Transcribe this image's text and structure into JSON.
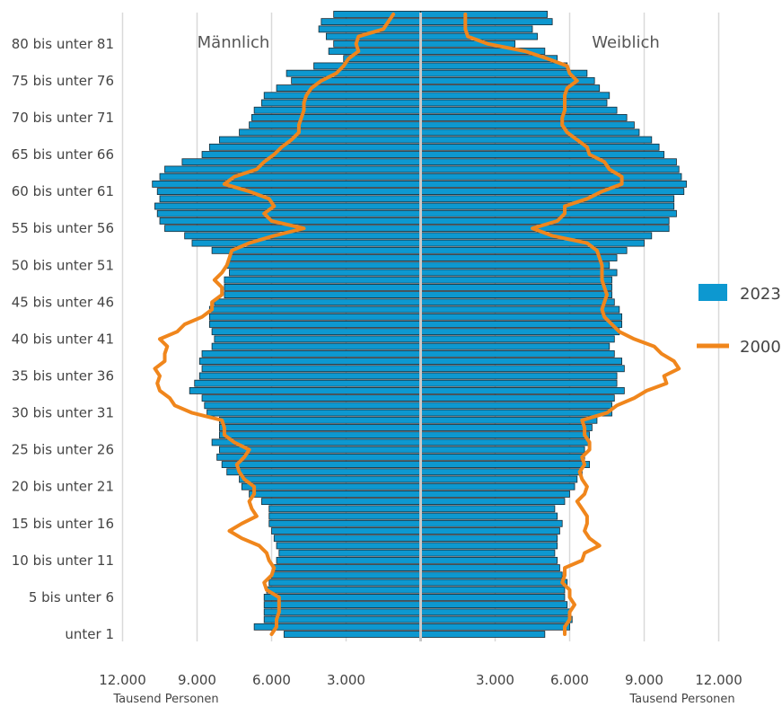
{
  "chart_data": {
    "type": "bar",
    "subtype": "population-pyramid",
    "side_labels": {
      "left": "Männlich",
      "right": "Weiblich"
    },
    "age_tick_labels": [
      "80 bis unter 81",
      "75 bis unter 76",
      "70 bis unter 71",
      "65 bis unter 66",
      "60 bis unter 61",
      "55 bis unter 56",
      "50 bis unter 51",
      "45 bis unter 46",
      "40 bis unter 41",
      "35 bis unter 36",
      "30 bis unter 31",
      "25 bis unter 26",
      "20 bis unter 21",
      "15 bis unter 16",
      "10 bis unter 11",
      "5 bis unter 6",
      "unter 1"
    ],
    "x_tick_labels_left": [
      "12.000",
      "9.000",
      "6.000",
      "3.000"
    ],
    "x_tick_labels_right": [
      "3.000",
      "6.000",
      "9.000",
      "12.000"
    ],
    "xlabel_left": "Tausend Personen",
    "xlabel_right": "Tausend Personen",
    "xlim": [
      0,
      12000
    ],
    "ages": [
      0,
      1,
      2,
      3,
      4,
      5,
      6,
      7,
      8,
      9,
      10,
      11,
      12,
      13,
      14,
      15,
      16,
      17,
      18,
      19,
      20,
      21,
      22,
      23,
      24,
      25,
      26,
      27,
      28,
      29,
      30,
      31,
      32,
      33,
      34,
      35,
      36,
      37,
      38,
      39,
      40,
      41,
      42,
      43,
      44,
      45,
      46,
      47,
      48,
      49,
      50,
      51,
      52,
      53,
      54,
      55,
      56,
      57,
      58,
      59,
      60,
      61,
      62,
      63,
      64,
      65,
      66,
      67,
      68,
      69,
      70,
      71,
      72,
      73,
      74,
      75,
      76,
      77,
      78,
      79,
      80,
      81,
      82,
      83,
      84
    ],
    "series": [
      {
        "name": "2023",
        "color": "#0d98d0",
        "male": [
          5500,
          6700,
          6300,
          6300,
          6300,
          6300,
          6200,
          6100,
          6000,
          5900,
          5800,
          5700,
          5800,
          5900,
          6000,
          6100,
          6100,
          6100,
          6400,
          6900,
          7200,
          7300,
          7800,
          8000,
          8200,
          8100,
          8400,
          8100,
          8100,
          8100,
          8600,
          8700,
          8800,
          9300,
          9100,
          8900,
          8800,
          8900,
          8800,
          8400,
          8300,
          8400,
          8500,
          8500,
          8500,
          8300,
          7900,
          7900,
          7900,
          7700,
          7800,
          7700,
          8400,
          9200,
          9500,
          10300,
          10500,
          10600,
          10700,
          10500,
          10600,
          10800,
          10500,
          10300,
          9600,
          8800,
          8500,
          8100,
          7300,
          6900,
          6800,
          6700,
          6400,
          6300,
          5800,
          5200,
          5400,
          4300,
          3100,
          3700,
          3500,
          3800,
          4100,
          4000,
          3500
        ],
        "female": [
          5000,
          6000,
          6100,
          6000,
          5900,
          5800,
          5800,
          5900,
          5700,
          5600,
          5500,
          5400,
          5500,
          5500,
          5600,
          5700,
          5500,
          5400,
          5800,
          6000,
          6200,
          6300,
          6500,
          6800,
          6600,
          6600,
          6800,
          6800,
          6900,
          7100,
          7700,
          7700,
          7800,
          8200,
          7900,
          7900,
          8200,
          8100,
          7800,
          7600,
          7800,
          8000,
          8100,
          8100,
          8000,
          7800,
          7700,
          7700,
          7700,
          7900,
          7600,
          7900,
          8300,
          9000,
          9300,
          10000,
          10000,
          10300,
          10200,
          10200,
          10600,
          10700,
          10500,
          10400,
          10300,
          9800,
          9600,
          9300,
          8800,
          8600,
          8300,
          7900,
          7500,
          7600,
          7200,
          7000,
          6700,
          5900,
          5500,
          5000,
          3800,
          4700,
          4500,
          5300,
          5100
        ]
      },
      {
        "name": "2000",
        "color": "#f0861c",
        "male": [
          6000,
          5800,
          5800,
          5700,
          5700,
          5700,
          6200,
          6300,
          6000,
          5900,
          6100,
          6200,
          6500,
          7200,
          7700,
          7200,
          6600,
          6800,
          6900,
          6700,
          6700,
          7100,
          7300,
          7400,
          7100,
          6900,
          7500,
          7900,
          7900,
          8000,
          9200,
          9900,
          10100,
          10500,
          10600,
          10500,
          10700,
          10300,
          10300,
          10200,
          10500,
          9800,
          9500,
          8800,
          8400,
          8400,
          8000,
          8000,
          8300,
          8000,
          7800,
          7700,
          7600,
          6900,
          5900,
          4700,
          6000,
          6300,
          5900,
          6100,
          6900,
          7900,
          7500,
          6600,
          6300,
          5900,
          5600,
          5200,
          4900,
          4900,
          4800,
          4700,
          4700,
          4600,
          4400,
          4000,
          3400,
          3100,
          2900,
          2500,
          2600,
          2500,
          1500,
          1300,
          1100
        ],
        "female": [
          5800,
          5800,
          6000,
          6000,
          6200,
          6000,
          6000,
          5700,
          5800,
          5800,
          6500,
          6600,
          7200,
          6800,
          6600,
          6700,
          6700,
          6500,
          6300,
          6600,
          6700,
          6500,
          6400,
          6600,
          6500,
          6800,
          6800,
          6600,
          6600,
          6500,
          7500,
          7900,
          8600,
          9100,
          9900,
          9800,
          10400,
          10200,
          9700,
          9400,
          8600,
          8000,
          7700,
          7400,
          7300,
          7400,
          7500,
          7400,
          7300,
          7300,
          7300,
          7200,
          7100,
          6700,
          5300,
          4500,
          5500,
          5800,
          5800,
          6700,
          7300,
          8100,
          8100,
          7600,
          7400,
          6800,
          6700,
          6300,
          5900,
          5700,
          5700,
          5800,
          5800,
          5800,
          5900,
          6300,
          6000,
          5900,
          5100,
          4200,
          2700,
          1900,
          1800,
          1800,
          1800
        ],
        "linewidth": 4
      }
    ],
    "legend": {
      "position": "right",
      "entries": [
        "2023",
        "2000"
      ]
    },
    "grid": true
  }
}
